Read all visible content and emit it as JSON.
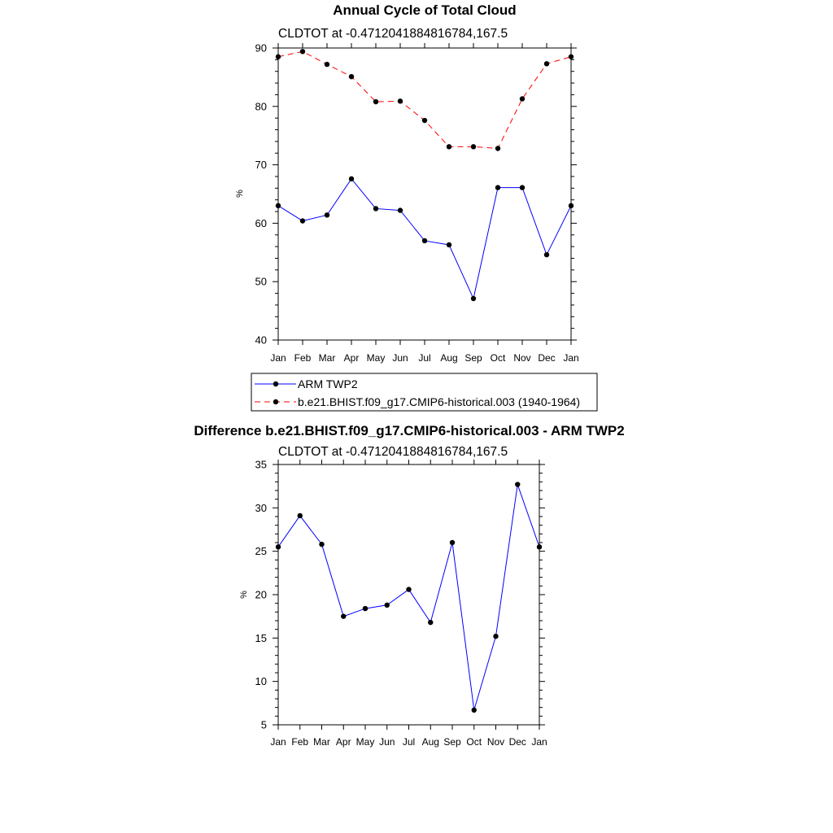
{
  "chart_data": [
    {
      "type": "line",
      "title": "Annual Cycle of Total Cloud",
      "subtitle": "CLDTOT at -0.4712041884816784,167.5",
      "xlabel": "",
      "ylabel": "%",
      "categories": [
        "Jan",
        "Feb",
        "Mar",
        "Apr",
        "May",
        "Jun",
        "Jul",
        "Aug",
        "Sep",
        "Oct",
        "Nov",
        "Dec",
        "Jan"
      ],
      "ylim": [
        40,
        90
      ],
      "yticks": [
        40,
        50,
        60,
        70,
        80,
        90
      ],
      "series": [
        {
          "name": "ARM TWP2",
          "color": "#0000ff",
          "dash": "solid",
          "values": [
            63.0,
            60.4,
            61.4,
            67.6,
            62.5,
            62.2,
            57.0,
            56.3,
            47.1,
            66.1,
            66.1,
            54.6,
            63.0
          ]
        },
        {
          "name": "b.e21.BHIST.f09_g17.CMIP6-historical.003 (1940-1964)",
          "color": "#ff0000",
          "dash": "dashed",
          "values": [
            88.5,
            89.4,
            87.2,
            85.1,
            80.8,
            80.9,
            77.6,
            73.1,
            73.1,
            72.8,
            81.3,
            87.3,
            88.5
          ]
        }
      ],
      "legend_position": "below"
    },
    {
      "type": "line",
      "title": "Difference b.e21.BHIST.f09_g17.CMIP6-historical.003 - ARM TWP2",
      "subtitle": "CLDTOT at -0.4712041884816784,167.5",
      "xlabel": "",
      "ylabel": "%",
      "categories": [
        "Jan",
        "Feb",
        "Mar",
        "Apr",
        "May",
        "Jun",
        "Jul",
        "Aug",
        "Sep",
        "Oct",
        "Nov",
        "Dec",
        "Jan"
      ],
      "ylim": [
        5,
        35
      ],
      "yticks": [
        5,
        10,
        15,
        20,
        25,
        30,
        35
      ],
      "series": [
        {
          "name": "Difference",
          "color": "#0000ff",
          "dash": "solid",
          "values": [
            25.5,
            29.1,
            25.8,
            17.5,
            18.4,
            18.8,
            20.6,
            16.8,
            26.0,
            6.7,
            15.2,
            32.7,
            25.5
          ]
        }
      ]
    }
  ]
}
